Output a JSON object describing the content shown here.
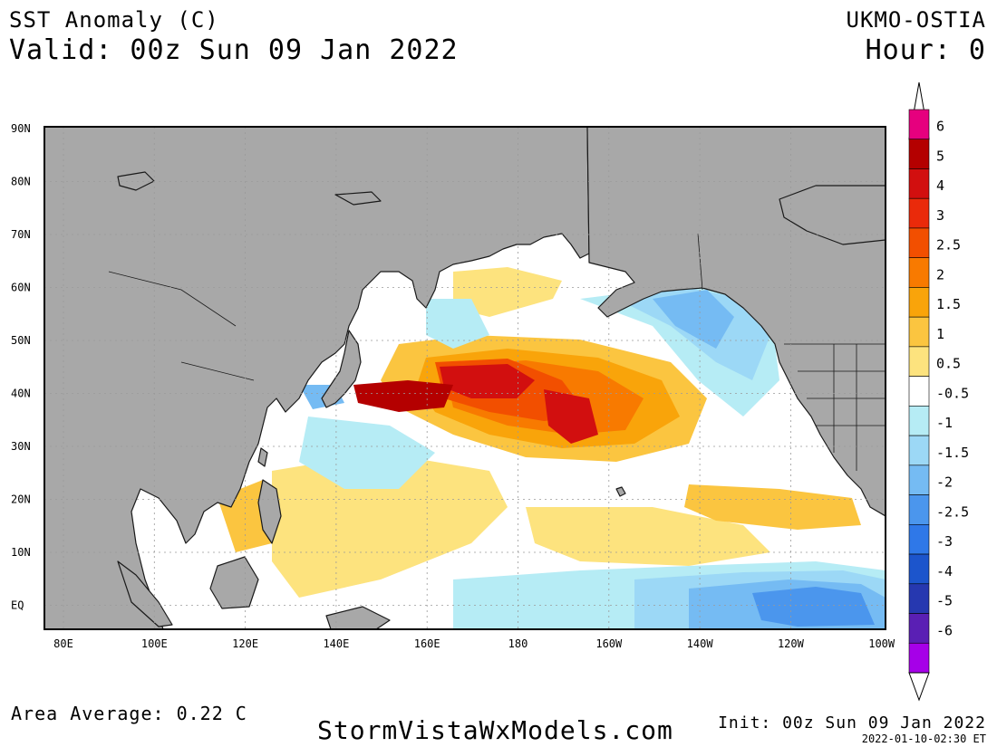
{
  "header": {
    "title": "SST Anomaly (C)",
    "valid": "Valid: 00z Sun 09 Jan 2022",
    "model": "UKMO-OSTIA",
    "hour": "Hour: 0"
  },
  "map": {
    "lat_labels": [
      "90N",
      "80N",
      "70N",
      "60N",
      "50N",
      "40N",
      "30N",
      "20N",
      "10N",
      "EQ"
    ],
    "lon_labels": [
      "80E",
      "100E",
      "120E",
      "140E",
      "160E",
      "180",
      "160W",
      "140W",
      "120W",
      "100W"
    ],
    "land_color": "#a8a8a8",
    "ocean_color": "#ffffff"
  },
  "colorbar": {
    "labels": [
      "6",
      "5",
      "4",
      "3",
      "2.5",
      "2",
      "1.5",
      "1",
      "0.5",
      "-0.5",
      "-1",
      "-1.5",
      "-2",
      "-2.5",
      "-3",
      "-4",
      "-5",
      "-6"
    ],
    "colors": [
      "#e6007e",
      "#b40000",
      "#d20f0f",
      "#ea2a0a",
      "#f24f00",
      "#f87a00",
      "#f9a40a",
      "#fbc540",
      "#fde37e",
      "#ffffff",
      "#b6ecf5",
      "#9cd8f6",
      "#75bbf3",
      "#4b96ed",
      "#2f78e8",
      "#1c55cc",
      "#2638b0",
      "#5a1fb4",
      "#a600e8"
    ]
  },
  "footer": {
    "area_average": "Area Average: 0.22 C",
    "site": "StormVistaWxModels.com",
    "init": "Init: 00z Sun 09 Jan 2022",
    "timestamp": "2022-01-10-02:30 ET"
  }
}
